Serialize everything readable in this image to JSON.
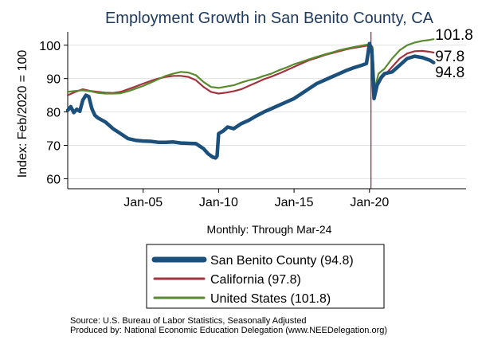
{
  "chart_data": {
    "type": "line",
    "title": "Employment Growth in San Benito County, CA",
    "ylabel": "Index: Feb/2020 = 100",
    "xlabel": "Monthly: Through Mar-24",
    "ylim": [
      57,
      104
    ],
    "yticks": [
      60,
      70,
      80,
      90,
      100
    ],
    "xlim": [
      2000.0,
      2026.4
    ],
    "xticks": [
      {
        "label": "Jan-05",
        "value": 2005.0
      },
      {
        "label": "Jan-10",
        "value": 2010.0
      },
      {
        "label": "Jan-15",
        "value": 2015.0
      },
      {
        "label": "Jan-20",
        "value": 2020.0
      }
    ],
    "vline": {
      "x": 2020.1,
      "color": "#8B1C4A"
    },
    "grid": {
      "horizontal": true,
      "vertical": false
    },
    "legend_position": "bottom",
    "series": [
      {
        "name": "San Benito County (94.8)",
        "color": "#1B4F7C",
        "end_label": "94.8",
        "points": [
          [
            2000.0,
            80.5
          ],
          [
            2000.2,
            81.6
          ],
          [
            2000.4,
            79.8
          ],
          [
            2000.6,
            80.8
          ],
          [
            2000.8,
            80.2
          ],
          [
            2001.0,
            83.5
          ],
          [
            2001.2,
            85.0
          ],
          [
            2001.4,
            84.6
          ],
          [
            2001.6,
            81.0
          ],
          [
            2001.8,
            79.0
          ],
          [
            2002.0,
            78.2
          ],
          [
            2002.5,
            77.0
          ],
          [
            2003.0,
            75.0
          ],
          [
            2003.5,
            73.5
          ],
          [
            2004.0,
            72.0
          ],
          [
            2004.5,
            71.5
          ],
          [
            2005.0,
            71.3
          ],
          [
            2005.5,
            71.2
          ],
          [
            2006.0,
            70.9
          ],
          [
            2006.5,
            70.9
          ],
          [
            2007.0,
            71.0
          ],
          [
            2007.5,
            70.7
          ],
          [
            2008.0,
            70.6
          ],
          [
            2008.5,
            70.5
          ],
          [
            2009.0,
            69.0
          ],
          [
            2009.3,
            67.5
          ],
          [
            2009.6,
            66.5
          ],
          [
            2009.8,
            66.2
          ],
          [
            2009.9,
            66.8
          ],
          [
            2010.0,
            73.5
          ],
          [
            2010.3,
            74.3
          ],
          [
            2010.6,
            75.5
          ],
          [
            2011.0,
            75.0
          ],
          [
            2011.5,
            76.5
          ],
          [
            2012.0,
            77.5
          ],
          [
            2012.5,
            78.8
          ],
          [
            2013.0,
            80.0
          ],
          [
            2013.5,
            81.0
          ],
          [
            2014.0,
            82.0
          ],
          [
            2014.5,
            83.0
          ],
          [
            2015.0,
            84.0
          ],
          [
            2015.5,
            85.5
          ],
          [
            2016.0,
            87.0
          ],
          [
            2016.5,
            88.5
          ],
          [
            2017.0,
            89.5
          ],
          [
            2017.5,
            90.5
          ],
          [
            2018.0,
            91.5
          ],
          [
            2018.5,
            92.5
          ],
          [
            2019.0,
            93.3
          ],
          [
            2019.5,
            94.0
          ],
          [
            2019.8,
            94.5
          ],
          [
            2020.0,
            100.5
          ],
          [
            2020.15,
            98.5
          ],
          [
            2020.3,
            84.0
          ],
          [
            2020.5,
            88.0
          ],
          [
            2020.8,
            90.5
          ],
          [
            2021.0,
            91.5
          ],
          [
            2021.5,
            92.0
          ],
          [
            2022.0,
            94.0
          ],
          [
            2022.5,
            96.0
          ],
          [
            2023.0,
            96.7
          ],
          [
            2023.5,
            96.3
          ],
          [
            2024.0,
            95.5
          ],
          [
            2024.25,
            94.8
          ]
        ]
      },
      {
        "name": "California (97.8)",
        "color": "#A3343F",
        "end_label": "97.8",
        "points": [
          [
            2000.0,
            85.0
          ],
          [
            2000.5,
            86.0
          ],
          [
            2001.0,
            86.8
          ],
          [
            2001.5,
            86.3
          ],
          [
            2002.0,
            86.0
          ],
          [
            2002.5,
            85.8
          ],
          [
            2003.0,
            85.7
          ],
          [
            2003.5,
            86.0
          ],
          [
            2004.0,
            86.8
          ],
          [
            2004.5,
            87.6
          ],
          [
            2005.0,
            88.5
          ],
          [
            2005.5,
            89.3
          ],
          [
            2006.0,
            90.0
          ],
          [
            2006.5,
            90.5
          ],
          [
            2007.0,
            90.8
          ],
          [
            2007.5,
            90.8
          ],
          [
            2008.0,
            90.5
          ],
          [
            2008.5,
            89.5
          ],
          [
            2009.0,
            87.5
          ],
          [
            2009.5,
            86.0
          ],
          [
            2010.0,
            85.5
          ],
          [
            2010.5,
            85.8
          ],
          [
            2011.0,
            86.2
          ],
          [
            2011.5,
            86.8
          ],
          [
            2012.0,
            87.8
          ],
          [
            2012.5,
            88.8
          ],
          [
            2013.0,
            89.8
          ],
          [
            2013.5,
            90.6
          ],
          [
            2014.0,
            91.5
          ],
          [
            2014.5,
            92.5
          ],
          [
            2015.0,
            93.5
          ],
          [
            2015.5,
            94.5
          ],
          [
            2016.0,
            95.5
          ],
          [
            2016.5,
            96.2
          ],
          [
            2017.0,
            97.0
          ],
          [
            2017.5,
            97.6
          ],
          [
            2018.0,
            98.2
          ],
          [
            2018.5,
            98.8
          ],
          [
            2019.0,
            99.2
          ],
          [
            2019.5,
            99.6
          ],
          [
            2020.0,
            100.0
          ],
          [
            2020.2,
            99.0
          ],
          [
            2020.35,
            85.5
          ],
          [
            2020.6,
            89.0
          ],
          [
            2021.0,
            91.0
          ],
          [
            2021.5,
            93.5
          ],
          [
            2022.0,
            96.0
          ],
          [
            2022.5,
            97.5
          ],
          [
            2023.0,
            98.2
          ],
          [
            2023.5,
            98.3
          ],
          [
            2024.0,
            98.0
          ],
          [
            2024.25,
            97.8
          ]
        ]
      },
      {
        "name": "United States (101.8)",
        "color": "#5A8A2E",
        "end_label": "101.8",
        "points": [
          [
            2000.0,
            86.0
          ],
          [
            2000.5,
            86.3
          ],
          [
            2001.0,
            86.5
          ],
          [
            2001.5,
            86.2
          ],
          [
            2002.0,
            85.7
          ],
          [
            2002.5,
            85.5
          ],
          [
            2003.0,
            85.5
          ],
          [
            2003.5,
            85.6
          ],
          [
            2004.0,
            86.2
          ],
          [
            2004.5,
            87.0
          ],
          [
            2005.0,
            87.8
          ],
          [
            2005.5,
            88.8
          ],
          [
            2006.0,
            89.8
          ],
          [
            2006.5,
            90.8
          ],
          [
            2007.0,
            91.5
          ],
          [
            2007.5,
            92.0
          ],
          [
            2008.0,
            91.8
          ],
          [
            2008.5,
            91.0
          ],
          [
            2009.0,
            89.0
          ],
          [
            2009.5,
            87.5
          ],
          [
            2010.0,
            87.2
          ],
          [
            2010.5,
            87.6
          ],
          [
            2011.0,
            88.0
          ],
          [
            2011.5,
            88.8
          ],
          [
            2012.0,
            89.5
          ],
          [
            2012.5,
            90.0
          ],
          [
            2013.0,
            90.8
          ],
          [
            2013.5,
            91.5
          ],
          [
            2014.0,
            92.5
          ],
          [
            2014.5,
            93.3
          ],
          [
            2015.0,
            94.3
          ],
          [
            2015.5,
            95.0
          ],
          [
            2016.0,
            95.8
          ],
          [
            2016.5,
            96.5
          ],
          [
            2017.0,
            97.2
          ],
          [
            2017.5,
            97.8
          ],
          [
            2018.0,
            98.5
          ],
          [
            2018.5,
            99.0
          ],
          [
            2019.0,
            99.5
          ],
          [
            2019.5,
            99.9
          ],
          [
            2020.0,
            100.3
          ],
          [
            2020.2,
            99.5
          ],
          [
            2020.35,
            87.0
          ],
          [
            2020.6,
            91.5
          ],
          [
            2021.0,
            93.0
          ],
          [
            2021.5,
            96.0
          ],
          [
            2022.0,
            98.5
          ],
          [
            2022.5,
            100.0
          ],
          [
            2023.0,
            100.8
          ],
          [
            2023.5,
            101.3
          ],
          [
            2024.0,
            101.6
          ],
          [
            2024.25,
            101.8
          ]
        ]
      }
    ]
  },
  "footer": {
    "source": "Source: U.S. Bureau of Labor Statistics, Seasonally Adjusted",
    "producer": "Produced by: National Economic Education Delegation (www.NEEDelegation.org)"
  }
}
